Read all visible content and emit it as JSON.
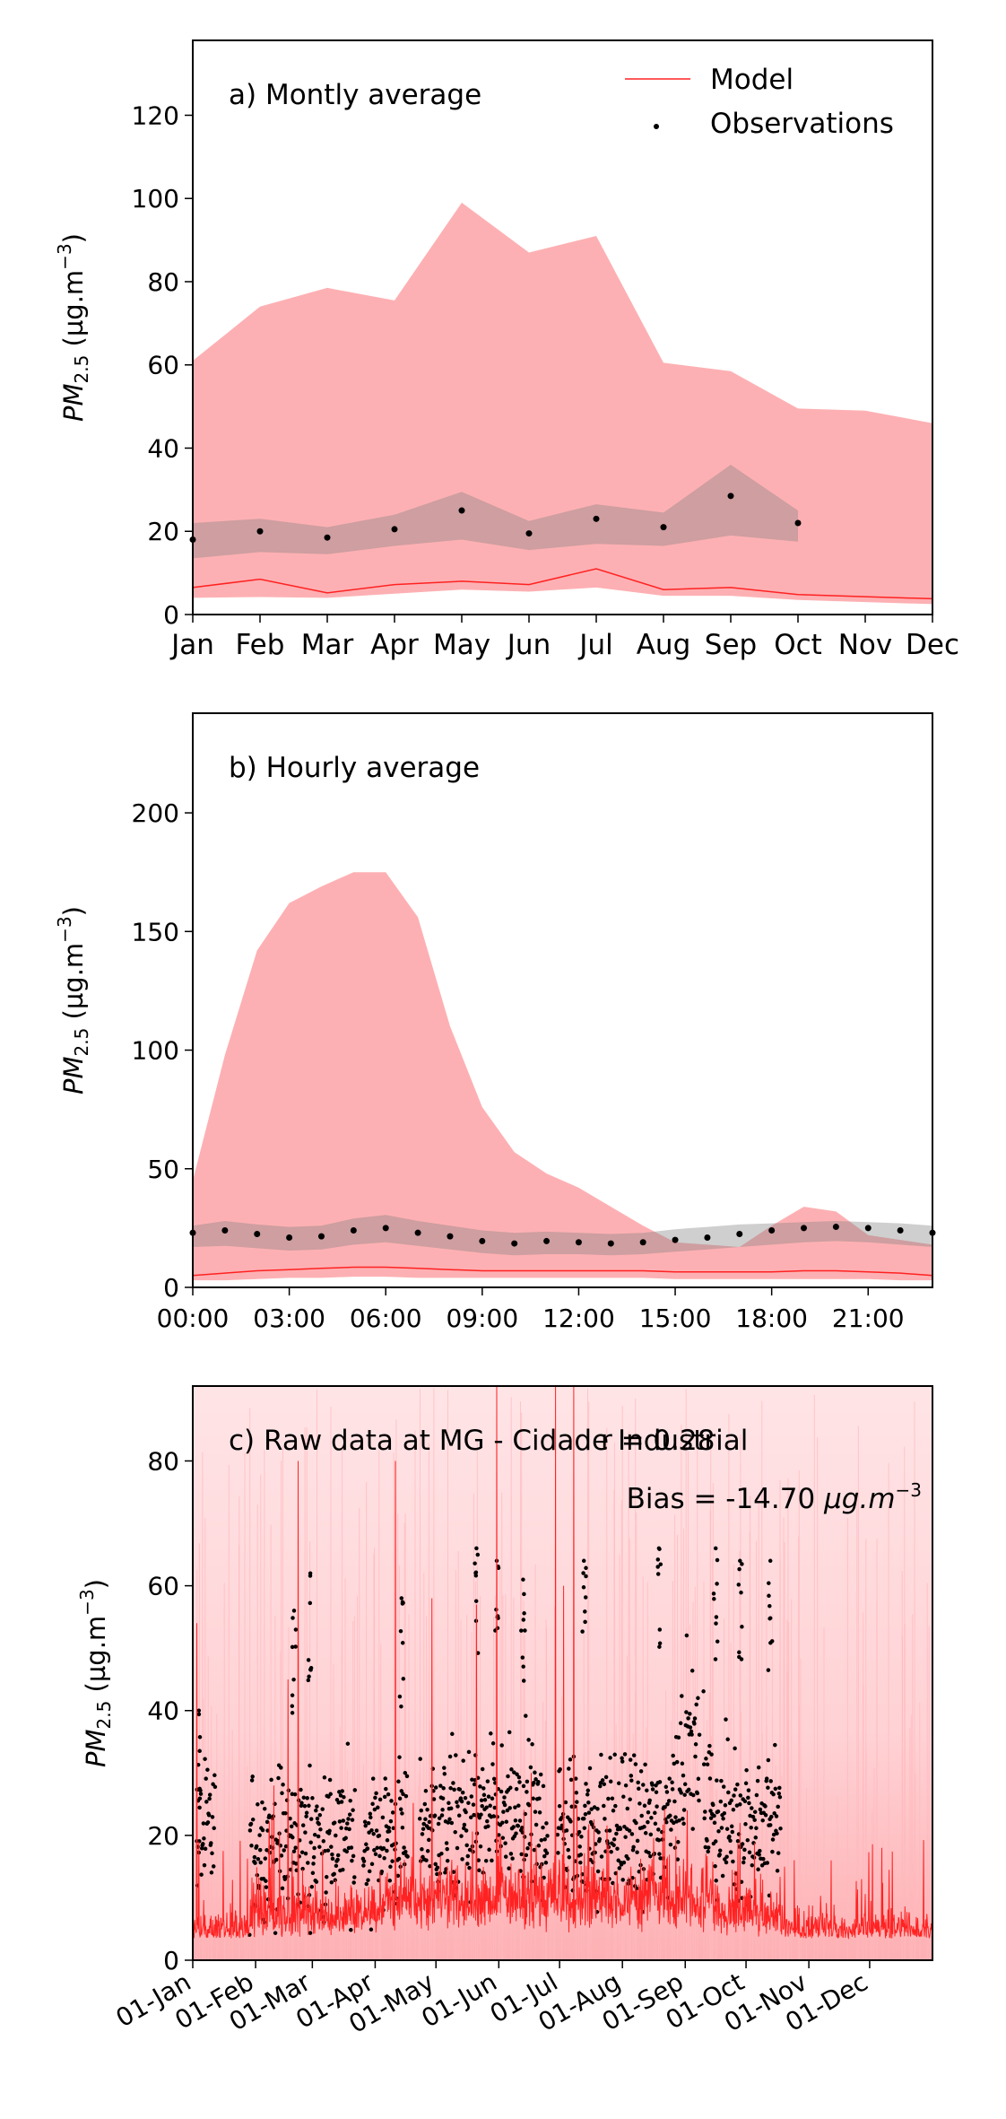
{
  "chart_data": [
    {
      "type": "area",
      "panel_label": "a) Montly average",
      "ylabel": "PM2.5 (µg.m⁻³)",
      "ylabel_main": "PM",
      "ylabel_sub": "2.5",
      "ylabel_unit": " (µg.m",
      "ylabel_sup": "−3",
      "ylabel_close": ")",
      "ylim": [
        0,
        138
      ],
      "yticks": [
        0,
        20,
        40,
        60,
        80,
        100,
        120
      ],
      "xtick_labels": [
        "Jan",
        "Feb",
        "Mar",
        "Apr",
        "May",
        "Jun",
        "Jul",
        "Aug",
        "Sep",
        "Oct",
        "Nov",
        "Dec"
      ],
      "legend": {
        "position": "upper right",
        "model": "Model",
        "observations": "Observations"
      },
      "x": [
        1,
        2,
        3,
        4,
        5,
        6,
        7,
        8,
        9,
        10,
        11,
        12
      ],
      "model_mean": [
        6.5,
        8.5,
        5.2,
        7.2,
        8.0,
        7.2,
        11.0,
        6.0,
        6.5,
        4.8,
        4.3,
        3.8
      ],
      "model_band_low": [
        4.0,
        4.2,
        4.0,
        5.0,
        6.0,
        5.5,
        6.5,
        4.5,
        4.5,
        3.5,
        3.0,
        2.5
      ],
      "model_band_high": [
        61,
        74,
        78.5,
        75.5,
        99,
        87,
        91,
        60.5,
        58.5,
        49.5,
        49,
        46
      ],
      "obs_x": [
        1,
        2,
        3,
        4,
        5,
        6,
        7,
        8,
        9,
        10
      ],
      "obs_mean": [
        18,
        20,
        18.5,
        20.5,
        25,
        19.5,
        23,
        21,
        28.5,
        22
      ],
      "obs_band_low": [
        13.5,
        15,
        14.5,
        16.5,
        18,
        15.5,
        17,
        16.5,
        19,
        17.5
      ],
      "obs_band_high": [
        22,
        23,
        21,
        24,
        29.5,
        22.5,
        26.5,
        24.5,
        36,
        25
      ]
    },
    {
      "type": "area",
      "panel_label": "b) Hourly average",
      "ylabel": "PM2.5 (µg.m⁻³)",
      "ylabel_main": "PM",
      "ylabel_sub": "2.5",
      "ylabel_unit": " (µg.m",
      "ylabel_sup": "−3",
      "ylabel_close": ")",
      "ylim": [
        0,
        242
      ],
      "yticks": [
        0,
        50,
        100,
        150,
        200
      ],
      "xlim": [
        0,
        23
      ],
      "xticks": [
        0,
        3,
        6,
        9,
        12,
        15,
        18,
        21
      ],
      "xtick_labels": [
        "00:00",
        "03:00",
        "06:00",
        "09:00",
        "12:00",
        "15:00",
        "18:00",
        "21:00"
      ],
      "x": [
        0,
        1,
        2,
        3,
        4,
        5,
        6,
        7,
        8,
        9,
        10,
        11,
        12,
        13,
        14,
        15,
        16,
        17,
        18,
        19,
        20,
        21,
        22,
        23
      ],
      "model_mean": [
        5,
        6,
        7,
        7.5,
        8,
        8.5,
        8.5,
        8,
        7.5,
        7,
        7,
        7,
        7,
        7,
        7,
        6.5,
        6.5,
        6.5,
        6.5,
        7,
        7,
        6.5,
        6,
        5
      ],
      "model_band_low": [
        3,
        3,
        3.5,
        4,
        4,
        4.5,
        4.5,
        4,
        4,
        4,
        4,
        4,
        4,
        4,
        4,
        3.5,
        3.5,
        3.5,
        3.5,
        3.5,
        3.5,
        3.5,
        3,
        3
      ],
      "model_band_high": [
        45,
        98,
        142,
        162,
        169,
        175,
        175,
        156,
        110,
        76,
        57,
        48,
        42,
        34,
        26,
        19,
        18,
        17,
        26,
        34,
        32,
        22,
        20,
        18
      ],
      "obs_mean": [
        23,
        24,
        22.5,
        21,
        21.5,
        24,
        25,
        23,
        21.5,
        19.5,
        18.5,
        19.5,
        19,
        18.5,
        19,
        20,
        21,
        22.5,
        24,
        25,
        25.5,
        25,
        24,
        23
      ],
      "obs_band_low": [
        17,
        17.5,
        16.5,
        15.5,
        16,
        18,
        19,
        17.5,
        16,
        14.5,
        13.5,
        14,
        14,
        13.5,
        14,
        15,
        16,
        17,
        18,
        19,
        19.5,
        19,
        18,
        17
      ],
      "obs_band_high": [
        26,
        28,
        26.5,
        25.5,
        26,
        29,
        30.5,
        28,
        26,
        24,
        23,
        23.5,
        23,
        22.5,
        23,
        24.5,
        25.5,
        26.5,
        27,
        27.5,
        28,
        27.5,
        27,
        26
      ]
    },
    {
      "type": "line",
      "panel_label": "c) Raw data at MG - Cidade Industrial",
      "stat_r": "r = 0.28",
      "stat_bias": "Bias = -14.70 µg.m⁻³",
      "stat_bias_text": "Bias = -14.70 ",
      "stat_bias_unit": "µg.m",
      "stat_bias_sup": "−3",
      "ylabel": "PM2.5 (µg.m⁻³)",
      "ylabel_main": "PM",
      "ylabel_sub": "2.5",
      "ylabel_unit": " (µg.m",
      "ylabel_sup": "−3",
      "ylabel_close": ")",
      "ylim": [
        0,
        92
      ],
      "yticks": [
        0,
        20,
        40,
        60,
        80
      ],
      "xlim": [
        0,
        365
      ],
      "xticks": [
        0,
        31,
        59,
        90,
        120,
        151,
        181,
        212,
        243,
        273,
        304,
        334
      ],
      "xtick_labels": [
        "01-Jan",
        "01-Feb",
        "01-Mar",
        "01-Apr",
        "01-May",
        "01-Jun",
        "01-Jul",
        "01-Aug",
        "01-Sep",
        "01-Oct",
        "01-Nov",
        "01-Dec"
      ],
      "obs_segments": [
        {
          "start": 2,
          "end": 11,
          "median": 20
        },
        {
          "start": 28,
          "end": 80,
          "median": 19
        },
        {
          "start": 84,
          "end": 106,
          "median": 20
        },
        {
          "start": 112,
          "end": 175,
          "median": 22
        },
        {
          "start": 180,
          "end": 250,
          "median": 21
        },
        {
          "start": 252,
          "end": 290,
          "median": 22
        }
      ],
      "obs_peaks": [
        {
          "day": 3,
          "value": 40
        },
        {
          "day": 50,
          "value": 56
        },
        {
          "day": 58,
          "value": 62
        },
        {
          "day": 103,
          "value": 58
        },
        {
          "day": 140,
          "value": 66
        },
        {
          "day": 150,
          "value": 64
        },
        {
          "day": 163,
          "value": 61
        },
        {
          "day": 193,
          "value": 64
        },
        {
          "day": 230,
          "value": 66
        },
        {
          "day": 258,
          "value": 66
        },
        {
          "day": 270,
          "value": 64
        },
        {
          "day": 285,
          "value": 64
        }
      ],
      "model_baseline": 3.5,
      "model_spikes": [
        {
          "day": 2,
          "value": 54
        },
        {
          "day": 40,
          "value": 28
        },
        {
          "day": 47,
          "value": 45
        },
        {
          "day": 52,
          "value": 80
        },
        {
          "day": 100,
          "value": 80
        },
        {
          "day": 118,
          "value": 58
        },
        {
          "day": 140,
          "value": 57
        },
        {
          "day": 150,
          "value": 92
        },
        {
          "day": 167,
          "value": 30
        },
        {
          "day": 179,
          "value": 92
        },
        {
          "day": 183,
          "value": 60
        },
        {
          "day": 188,
          "value": 92
        },
        {
          "day": 244,
          "value": 24
        },
        {
          "day": 270,
          "value": 22
        },
        {
          "day": 292,
          "value": 15
        },
        {
          "day": 315,
          "value": 16
        },
        {
          "day": 330,
          "value": 13
        },
        {
          "day": 340,
          "value": 18
        }
      ]
    }
  ]
}
